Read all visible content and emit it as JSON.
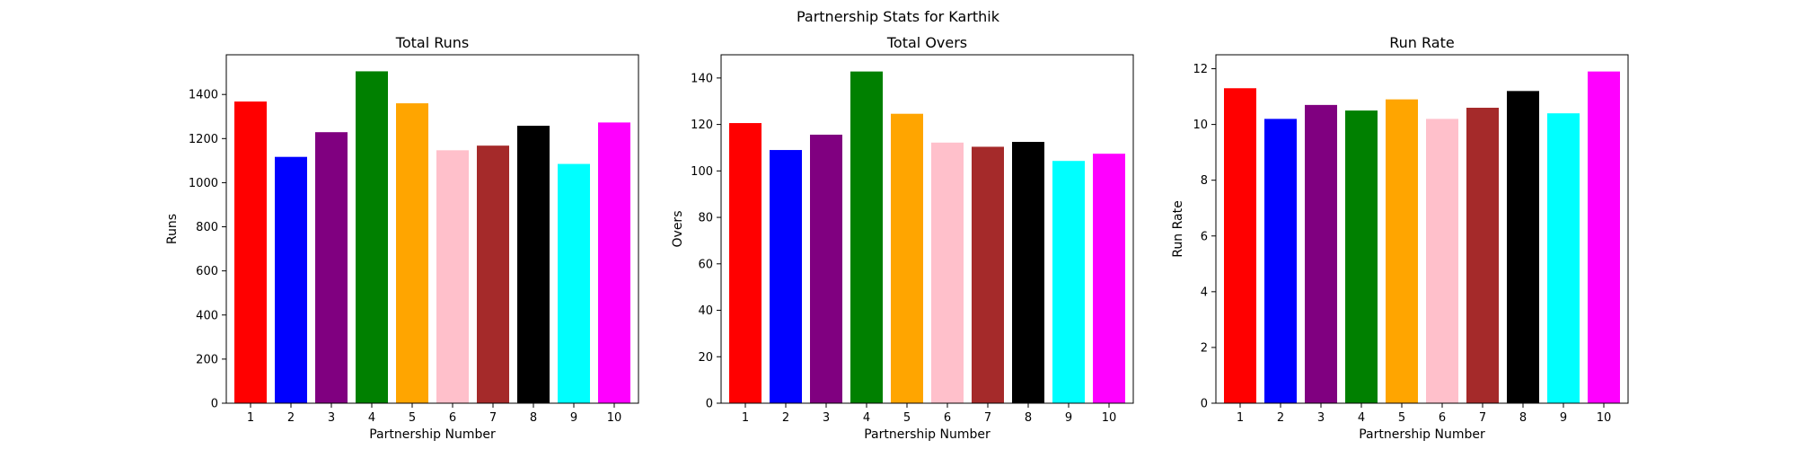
{
  "suptitle": "Partnership Stats for Karthik",
  "colors": [
    "#ff0000",
    "#0000ff",
    "#800080",
    "#008000",
    "#ffa500",
    "#ffc0cb",
    "#a52a2a",
    "#000000",
    "#00ffff",
    "#ff00ff"
  ],
  "chart_data": [
    {
      "type": "bar",
      "title": "Total Runs",
      "xlabel": "Partnership Number",
      "ylabel": "Runs",
      "categories": [
        "1",
        "2",
        "3",
        "4",
        "5",
        "6",
        "7",
        "8",
        "9",
        "10"
      ],
      "values": [
        1368,
        1117,
        1229,
        1505,
        1360,
        1147,
        1168,
        1258,
        1085,
        1273
      ],
      "ylim": [
        0,
        1580
      ],
      "yticks": [
        0,
        200,
        400,
        600,
        800,
        1000,
        1200,
        1400
      ],
      "grid": false
    },
    {
      "type": "bar",
      "title": "Total Overs",
      "xlabel": "Partnership Number",
      "ylabel": "Overs",
      "categories": [
        "1",
        "2",
        "3",
        "4",
        "5",
        "6",
        "7",
        "8",
        "9",
        "10"
      ],
      "values": [
        120.6,
        109.0,
        115.6,
        142.8,
        124.6,
        112.2,
        110.4,
        112.5,
        104.3,
        107.4
      ],
      "ylim": [
        0,
        150
      ],
      "yticks": [
        0,
        20,
        40,
        60,
        80,
        100,
        120,
        140
      ],
      "grid": false
    },
    {
      "type": "bar",
      "title": "Run Rate",
      "xlabel": "Partnership Number",
      "ylabel": "Run Rate",
      "categories": [
        "1",
        "2",
        "3",
        "4",
        "5",
        "6",
        "7",
        "8",
        "9",
        "10"
      ],
      "values": [
        11.3,
        10.2,
        10.7,
        10.5,
        10.9,
        10.2,
        10.6,
        11.2,
        10.4,
        11.9
      ],
      "ylim": [
        0,
        12.5
      ],
      "yticks": [
        0,
        2,
        4,
        6,
        8,
        10,
        12
      ],
      "grid": false
    }
  ]
}
